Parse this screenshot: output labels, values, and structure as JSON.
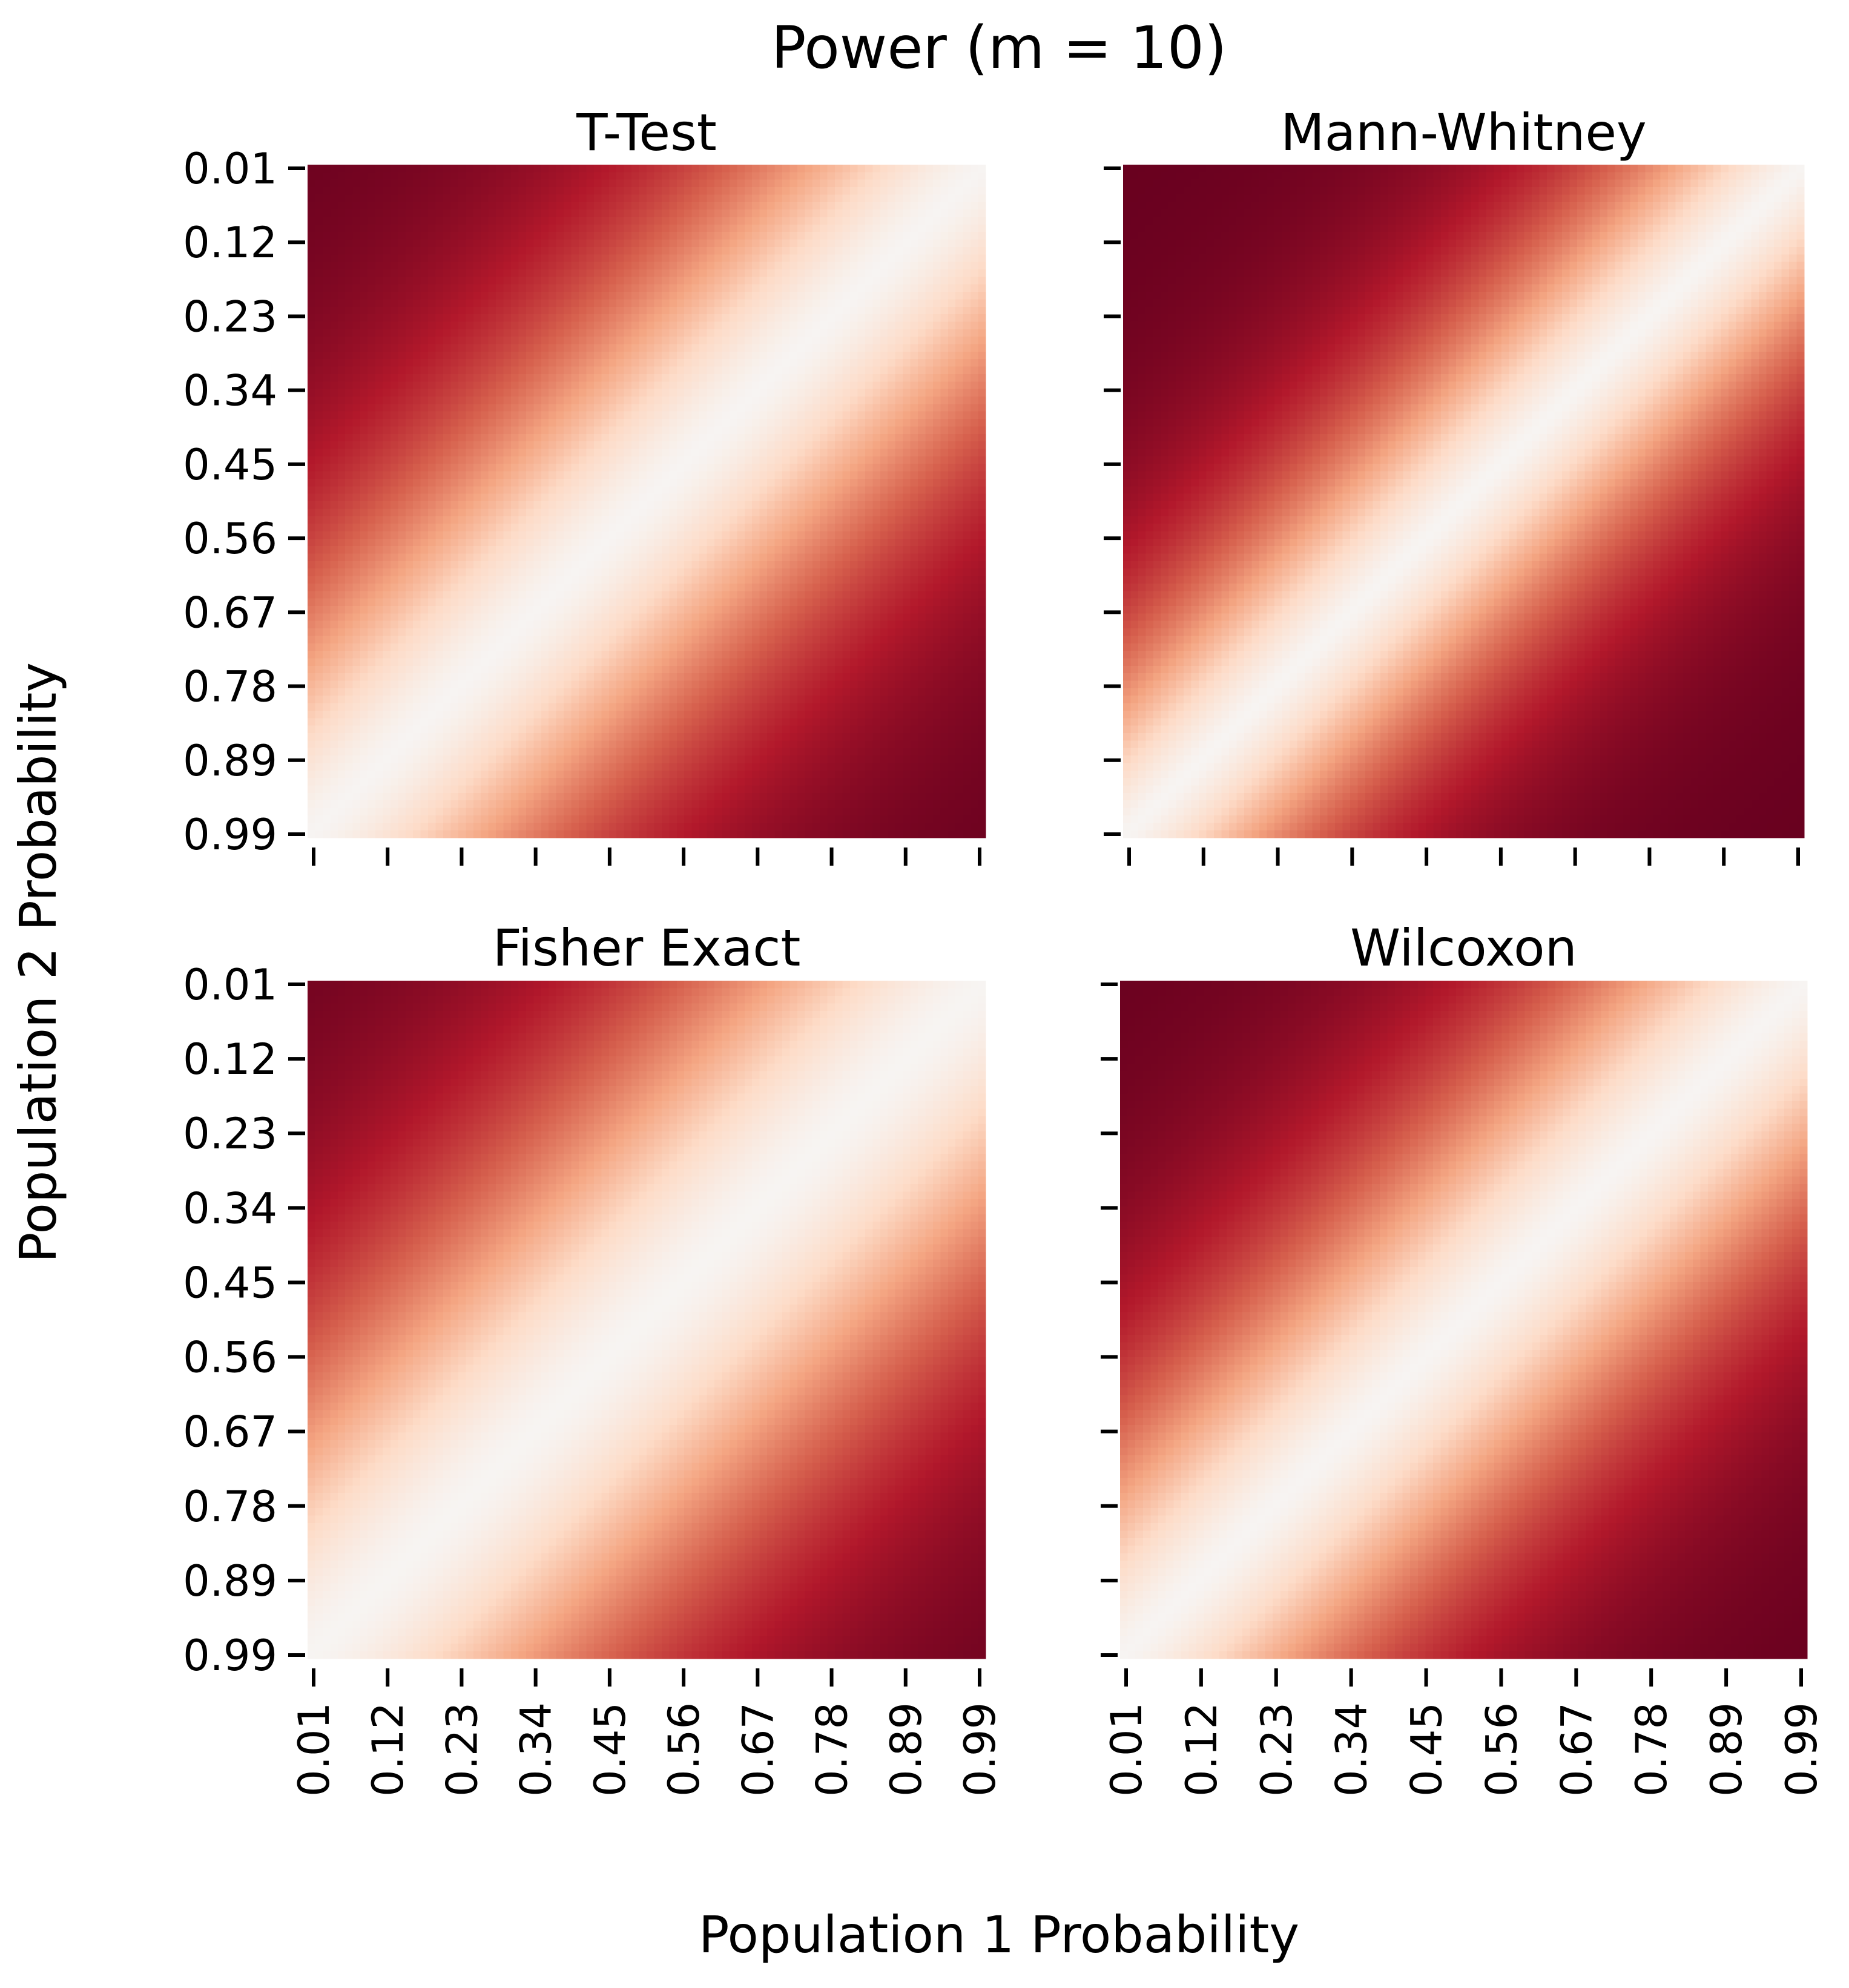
{
  "figure": {
    "suptitle": "Power (m = 10)",
    "xlabel": "Population 1 Probability",
    "ylabel": "Population 2 Probability"
  },
  "chart_data": [
    {
      "type": "heatmap",
      "title": "T-Test",
      "x_ticks": [
        "0.01",
        "0.12",
        "0.23",
        "0.34",
        "0.45",
        "0.56",
        "0.67",
        "0.78",
        "0.89",
        "0.99"
      ],
      "y_ticks": [
        "0.01",
        "0.12",
        "0.23",
        "0.34",
        "0.45",
        "0.56",
        "0.67",
        "0.78",
        "0.89",
        "0.99"
      ],
      "x_range": [
        0.01,
        0.99
      ],
      "y_range": [
        0.01,
        0.99
      ],
      "value_range": [
        0,
        1
      ],
      "grid_size": 90,
      "colormap": [
        "#f7f4f2",
        "#fddbc7",
        "#f4a582",
        "#d6604d",
        "#b2182b",
        "#67001f"
      ],
      "curve_width": 0.4,
      "curve_power": 1.5,
      "x_tick_labels_visible": false,
      "y_tick_labels_visible": true
    },
    {
      "type": "heatmap",
      "title": "Mann-Whitney",
      "x_ticks": [
        "0.01",
        "0.12",
        "0.23",
        "0.34",
        "0.45",
        "0.56",
        "0.67",
        "0.78",
        "0.89",
        "0.99"
      ],
      "y_ticks": [
        "0.01",
        "0.12",
        "0.23",
        "0.34",
        "0.45",
        "0.56",
        "0.67",
        "0.78",
        "0.89",
        "0.99"
      ],
      "x_range": [
        0.01,
        0.99
      ],
      "y_range": [
        0.01,
        0.99
      ],
      "value_range": [
        0,
        1
      ],
      "grid_size": 90,
      "colormap": [
        "#f7f4f2",
        "#fddbc7",
        "#f4a582",
        "#d6604d",
        "#b2182b",
        "#67001f"
      ],
      "curve_width": 0.3,
      "curve_power": 1.4,
      "x_tick_labels_visible": false,
      "y_tick_labels_visible": false
    },
    {
      "type": "heatmap",
      "title": "Fisher Exact",
      "x_ticks": [
        "0.01",
        "0.12",
        "0.23",
        "0.34",
        "0.45",
        "0.56",
        "0.67",
        "0.78",
        "0.89",
        "0.99"
      ],
      "y_ticks": [
        "0.01",
        "0.12",
        "0.23",
        "0.34",
        "0.45",
        "0.56",
        "0.67",
        "0.78",
        "0.89",
        "0.99"
      ],
      "x_range": [
        0.01,
        0.99
      ],
      "y_range": [
        0.01,
        0.99
      ],
      "value_range": [
        0,
        1
      ],
      "grid_size": 90,
      "colormap": [
        "#f7f4f2",
        "#fddbc7",
        "#f4a582",
        "#d6604d",
        "#b2182b",
        "#67001f"
      ],
      "curve_width": 0.47,
      "curve_power": 1.6,
      "x_tick_labels_visible": true,
      "y_tick_labels_visible": true
    },
    {
      "type": "heatmap",
      "title": "Wilcoxon",
      "x_ticks": [
        "0.01",
        "0.12",
        "0.23",
        "0.34",
        "0.45",
        "0.56",
        "0.67",
        "0.78",
        "0.89",
        "0.99"
      ],
      "y_ticks": [
        "0.01",
        "0.12",
        "0.23",
        "0.34",
        "0.45",
        "0.56",
        "0.67",
        "0.78",
        "0.89",
        "0.99"
      ],
      "x_range": [
        0.01,
        0.99
      ],
      "y_range": [
        0.01,
        0.99
      ],
      "value_range": [
        0,
        1
      ],
      "grid_size": 90,
      "colormap": [
        "#f7f4f2",
        "#fddbc7",
        "#f4a582",
        "#d6604d",
        "#b2182b",
        "#67001f"
      ],
      "curve_width": 0.37,
      "curve_power": 1.5,
      "x_tick_labels_visible": true,
      "y_tick_labels_visible": false
    }
  ]
}
